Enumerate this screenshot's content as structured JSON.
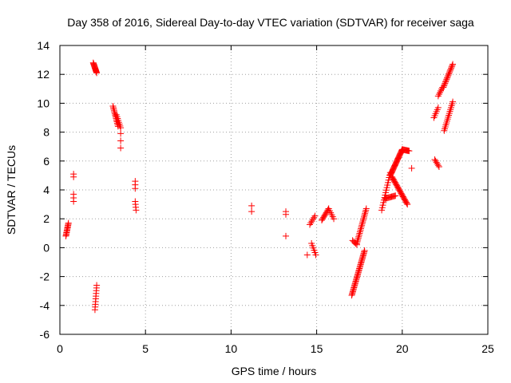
{
  "chart_data": {
    "type": "scatter",
    "title": "Day 358 of 2016, Sidereal Day-to-day VTEC variation (SDTVAR) for receiver saga",
    "xlabel": "GPS time / hours",
    "ylabel": "SDTVAR / TECUs",
    "xlim": [
      0,
      25
    ],
    "ylim": [
      -6,
      14
    ],
    "xticks": [
      0,
      5,
      10,
      15,
      20,
      25
    ],
    "yticks": [
      -6,
      -4,
      -2,
      0,
      2,
      4,
      6,
      8,
      10,
      12,
      14
    ],
    "xtick_labels": [
      "0",
      "5",
      "10",
      "15",
      "20",
      "25"
    ],
    "ytick_labels": [
      "-6",
      "-4",
      "-2",
      "0",
      "2",
      "4",
      "6",
      "8",
      "10",
      "12",
      "14"
    ],
    "grid": true,
    "marker": "+",
    "color": "#ff0000",
    "series": [
      {
        "name": "SDTVAR",
        "segments": [
          {
            "x0": 0.35,
            "y0": 0.8,
            "x1": 0.5,
            "y1": 1.7,
            "n": 12
          },
          {
            "x0": 0.8,
            "y0": 3.2,
            "x1": 0.8,
            "y1": 3.7,
            "n": 3
          },
          {
            "x0": 0.8,
            "y0": 4.9,
            "x1": 0.8,
            "y1": 5.1,
            "n": 2
          },
          {
            "x0": 1.95,
            "y0": 12.8,
            "x1": 2.15,
            "y1": 12.1,
            "n": 14
          },
          {
            "x0": 2.05,
            "y0": -4.3,
            "x1": 2.15,
            "y1": -2.6,
            "n": 10
          },
          {
            "x0": 3.1,
            "y0": 9.8,
            "x1": 3.4,
            "y1": 8.4,
            "n": 14
          },
          {
            "x0": 3.3,
            "y0": 9.2,
            "x1": 3.55,
            "y1": 8.3,
            "n": 8
          },
          {
            "x0": 3.55,
            "y0": 7.9,
            "x1": 3.55,
            "y1": 6.9,
            "n": 3
          },
          {
            "x0": 4.4,
            "y0": 4.6,
            "x1": 4.4,
            "y1": 4.1,
            "n": 3
          },
          {
            "x0": 4.4,
            "y0": 3.2,
            "x1": 4.45,
            "y1": 2.6,
            "n": 4
          },
          {
            "x0": 11.2,
            "y0": 2.9,
            "x1": 11.2,
            "y1": 2.5,
            "n": 2
          },
          {
            "x0": 13.2,
            "y0": 2.5,
            "x1": 13.2,
            "y1": 2.3,
            "n": 2
          },
          {
            "x0": 13.2,
            "y0": 0.8,
            "x1": 13.2,
            "y1": 0.8,
            "n": 1
          },
          {
            "x0": 14.45,
            "y0": -0.5,
            "x1": 14.45,
            "y1": -0.5,
            "n": 1
          },
          {
            "x0": 14.6,
            "y0": 1.6,
            "x1": 14.9,
            "y1": 2.2,
            "n": 6
          },
          {
            "x0": 14.7,
            "y0": 0.3,
            "x1": 14.95,
            "y1": -0.5,
            "n": 6
          },
          {
            "x0": 15.3,
            "y0": 1.9,
            "x1": 15.7,
            "y1": 2.7,
            "n": 10
          },
          {
            "x0": 15.7,
            "y0": 2.7,
            "x1": 16.0,
            "y1": 2.0,
            "n": 6
          },
          {
            "x0": 17.05,
            "y0": -3.3,
            "x1": 17.8,
            "y1": -0.2,
            "n": 36
          },
          {
            "x0": 17.1,
            "y0": 0.5,
            "x1": 17.35,
            "y1": 0.2,
            "n": 5
          },
          {
            "x0": 17.35,
            "y0": 0.3,
            "x1": 17.9,
            "y1": 2.7,
            "n": 22
          },
          {
            "x0": 18.8,
            "y0": 2.6,
            "x1": 19.3,
            "y1": 5.2,
            "n": 16
          },
          {
            "x0": 19.0,
            "y0": 3.4,
            "x1": 19.6,
            "y1": 3.6,
            "n": 12
          },
          {
            "x0": 19.3,
            "y0": 5.0,
            "x1": 20.0,
            "y1": 6.8,
            "n": 30
          },
          {
            "x0": 20.0,
            "y0": 6.8,
            "x1": 20.4,
            "y1": 6.7,
            "n": 10
          },
          {
            "x0": 19.4,
            "y0": 4.9,
            "x1": 20.3,
            "y1": 3.0,
            "n": 26
          },
          {
            "x0": 20.55,
            "y0": 5.5,
            "x1": 20.55,
            "y1": 5.5,
            "n": 1
          },
          {
            "x0": 21.85,
            "y0": 9.0,
            "x1": 22.1,
            "y1": 9.7,
            "n": 6
          },
          {
            "x0": 21.9,
            "y0": 6.1,
            "x1": 22.15,
            "y1": 5.6,
            "n": 6
          },
          {
            "x0": 22.1,
            "y0": 10.5,
            "x1": 22.35,
            "y1": 11.1,
            "n": 6
          },
          {
            "x0": 22.4,
            "y0": 11.1,
            "x1": 22.95,
            "y1": 12.7,
            "n": 18
          },
          {
            "x0": 22.45,
            "y0": 8.1,
            "x1": 22.95,
            "y1": 10.1,
            "n": 16
          }
        ]
      }
    ]
  }
}
